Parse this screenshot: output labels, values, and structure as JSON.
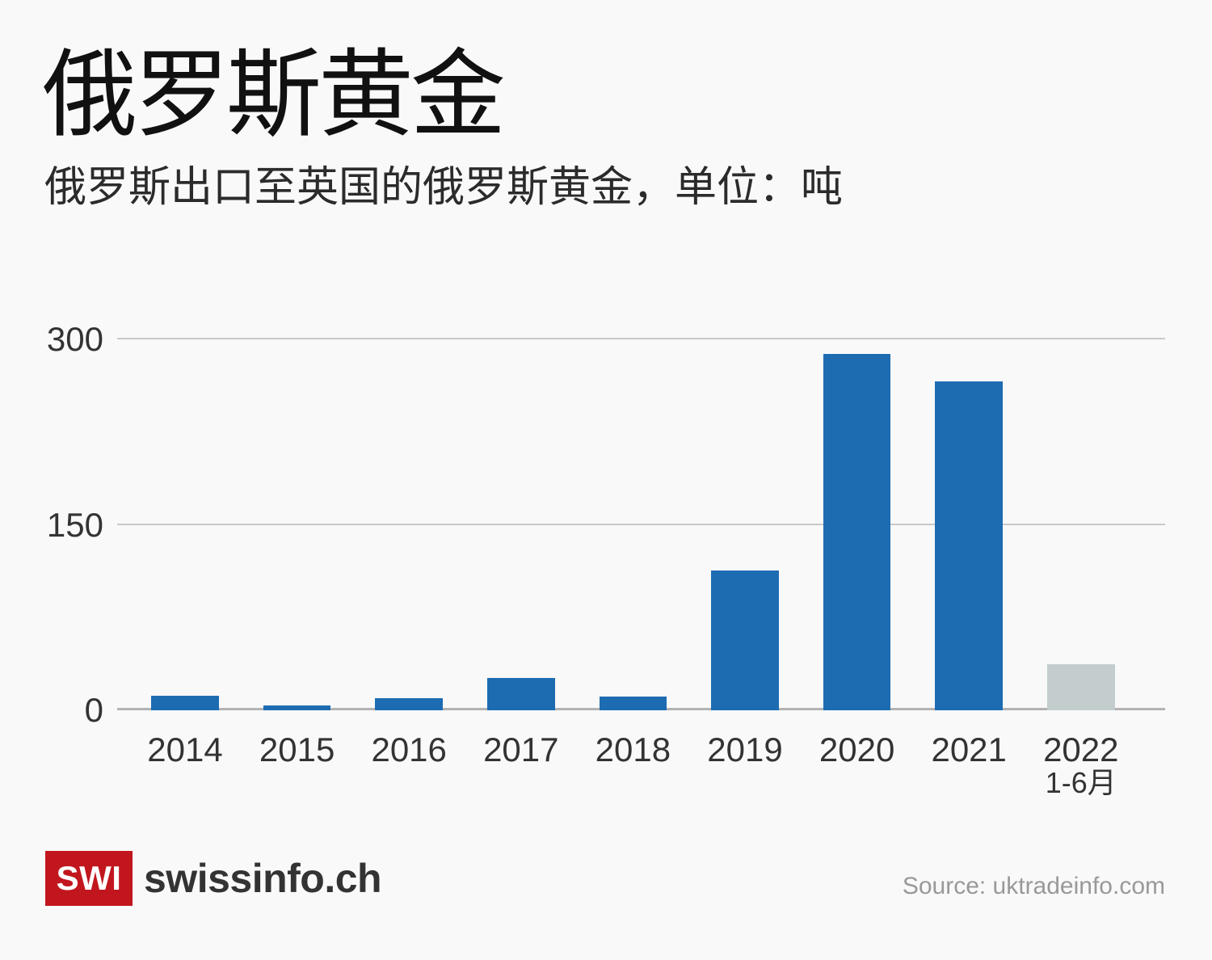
{
  "page": {
    "background": "#f9f9f9"
  },
  "header": {
    "title": "俄罗斯黄金",
    "subtitle": "俄罗斯出口至英国的俄罗斯黄金，单位：吨"
  },
  "chart_data": {
    "type": "bar",
    "title": "俄罗斯黄金",
    "subtitle": "俄罗斯出口至英国的俄罗斯黄金，单位：吨",
    "categories": [
      "2014",
      "2015",
      "2016",
      "2017",
      "2018",
      "2019",
      "2020",
      "2021",
      "2022"
    ],
    "category_sublabels": [
      "",
      "",
      "",
      "",
      "",
      "",
      "",
      "",
      "1-6月"
    ],
    "values": [
      12,
      4,
      10,
      26,
      11,
      113,
      288,
      266,
      37
    ],
    "unit": "吨",
    "xlabel": "",
    "ylabel": "",
    "ylim": [
      0,
      300
    ],
    "yticks": [
      0,
      150,
      300
    ],
    "grid": true,
    "legend": "none",
    "colors": {
      "bar_default": "#1d6cb2",
      "bar_final_partial": "#c3cdcd",
      "gridline": "#c9c9c9",
      "axis_baseline": "#b3b3b3",
      "tick_text": "#333333"
    }
  },
  "footer": {
    "logo_box": "SWI",
    "logo_text": "swissinfo.ch",
    "source": "Source: uktradeinfo.com",
    "brand_red": "#c2161f"
  }
}
